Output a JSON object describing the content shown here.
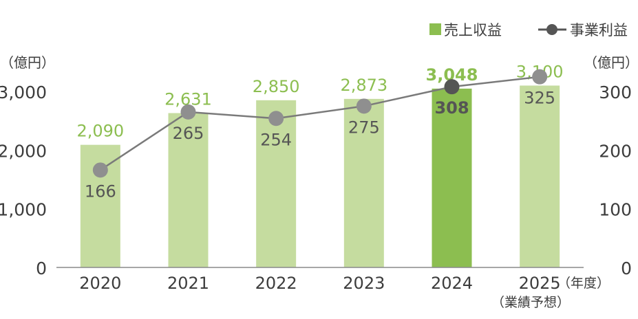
{
  "chart_data": {
    "type": "bar",
    "categories": [
      "2020",
      "2021",
      "2022",
      "2023",
      "2024",
      "2025"
    ],
    "category_note": "（業績予想）",
    "x_unit": "（年度）",
    "series": [
      {
        "name": "売上収益",
        "kind": "bar",
        "axis": "left",
        "values": [
          2090,
          2631,
          2850,
          2873,
          3048,
          3100
        ],
        "labels": [
          "2,090",
          "2,631",
          "2,850",
          "2,873",
          "3,048",
          "3,100"
        ],
        "color": "#c5dc9f",
        "highlight_color": "#8cbe50",
        "label_color": "#8cbe50"
      },
      {
        "name": "事業利益",
        "kind": "line",
        "axis": "right",
        "values": [
          166,
          265,
          254,
          275,
          308,
          325
        ],
        "labels": [
          "166",
          "265",
          "254",
          "275",
          "308",
          "325"
        ],
        "color": "#7a7a7a",
        "marker_color": "#8f8f8f",
        "label_color": "#555555"
      }
    ],
    "highlight_index": 4,
    "y_left": {
      "unit": "（億円）",
      "min": 0,
      "max": 3000,
      "ticks": [
        0,
        1000,
        2000,
        3000
      ],
      "tick_labels": [
        "0",
        "1,000",
        "2,000",
        "3,000"
      ]
    },
    "y_right": {
      "unit": "（億円）",
      "min": 0,
      "max": 300,
      "ticks": [
        0,
        100,
        200,
        300
      ],
      "tick_labels": [
        "0",
        "100",
        "200",
        "300"
      ]
    },
    "legend": {
      "position": "top-right",
      "items": [
        {
          "label": "売上収益",
          "kind": "square",
          "color": "#8cbe50"
        },
        {
          "label": "事業利益",
          "kind": "line-marker",
          "color": "#555555"
        }
      ]
    },
    "grid": false,
    "axis_color": "#8a8a8a"
  }
}
